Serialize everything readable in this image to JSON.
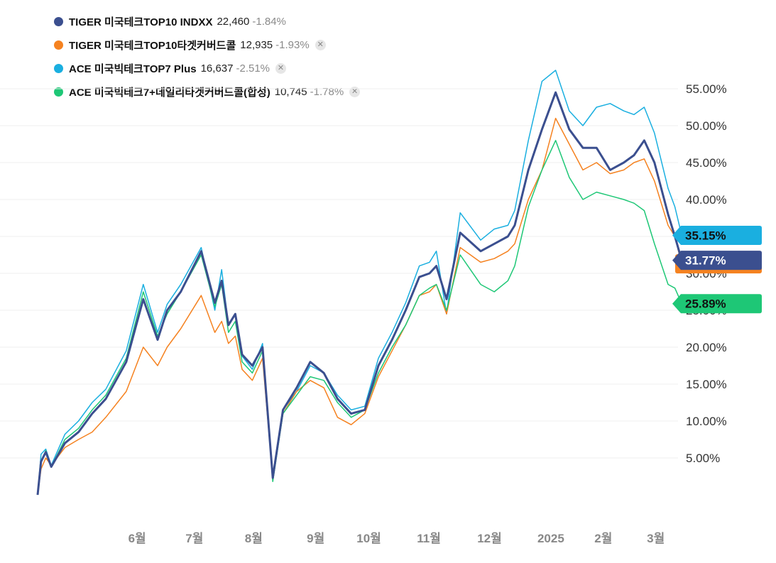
{
  "legend": [
    {
      "name": "TIGER 미국테크TOP10 INDXX",
      "price": "22,460",
      "change": "-1.84%",
      "color": "#3b4f8f",
      "closable": false
    },
    {
      "name": "TIGER 미국테크TOP10타겟커버드콜",
      "price": "12,935",
      "change": "-1.93%",
      "color": "#f58220",
      "closable": true
    },
    {
      "name": "ACE 미국빅테크TOP7 Plus",
      "price": "16,637",
      "change": "-2.51%",
      "color": "#1aafe0",
      "closable": true
    },
    {
      "name": "ACE 미국빅테크7+데일리타겟커버드콜(합성)",
      "price": "10,745",
      "change": "-1.78%",
      "color": "#1ec776",
      "closable": true
    }
  ],
  "close_glyph": "✕",
  "chart_data": {
    "type": "line",
    "y_ticks": [
      "5.00%",
      "10.00%",
      "15.00%",
      "20.00%",
      "25.00%",
      "30.00%",
      "35.00%",
      "40.00%",
      "45.00%",
      "50.00%",
      "55.00%"
    ],
    "y_tick_values": [
      5,
      10,
      15,
      20,
      25,
      30,
      35,
      40,
      45,
      50,
      55
    ],
    "ylim": [
      0,
      58
    ],
    "x_ticks": [
      {
        "label": "6월",
        "t": 0.146
      },
      {
        "label": "7월",
        "t": 0.23
      },
      {
        "label": "8월",
        "t": 0.317
      },
      {
        "label": "9월",
        "t": 0.408
      },
      {
        "label": "10월",
        "t": 0.486
      },
      {
        "label": "11월",
        "t": 0.574
      },
      {
        "label": "12월",
        "t": 0.663
      },
      {
        "label": "2025",
        "t": 0.753
      },
      {
        "label": "2월",
        "t": 0.83
      },
      {
        "label": "3월",
        "t": 0.907
      }
    ],
    "grid": true,
    "series": [
      {
        "name": "ACE 미국빅테크TOP7 Plus",
        "color": "#1aafe0",
        "width": 1.5,
        "last_value": "35.15%",
        "points": [
          [
            0,
            0
          ],
          [
            0.005,
            5.5
          ],
          [
            0.012,
            6.2
          ],
          [
            0.02,
            4
          ],
          [
            0.04,
            8.2
          ],
          [
            0.06,
            10
          ],
          [
            0.08,
            12.5
          ],
          [
            0.1,
            14.3
          ],
          [
            0.13,
            19.5
          ],
          [
            0.155,
            28.5
          ],
          [
            0.176,
            22
          ],
          [
            0.19,
            25.8
          ],
          [
            0.21,
            28.5
          ],
          [
            0.24,
            33.5
          ],
          [
            0.26,
            25
          ],
          [
            0.27,
            30.5
          ],
          [
            0.28,
            23
          ],
          [
            0.29,
            24.5
          ],
          [
            0.3,
            18.8
          ],
          [
            0.315,
            17
          ],
          [
            0.33,
            20.5
          ],
          [
            0.345,
            2.2
          ],
          [
            0.36,
            11.5
          ],
          [
            0.38,
            14
          ],
          [
            0.4,
            17.5
          ],
          [
            0.42,
            16.5
          ],
          [
            0.44,
            13.5
          ],
          [
            0.46,
            11.5
          ],
          [
            0.48,
            12
          ],
          [
            0.5,
            18.5
          ],
          [
            0.52,
            22
          ],
          [
            0.54,
            26
          ],
          [
            0.56,
            31
          ],
          [
            0.575,
            31.5
          ],
          [
            0.585,
            33
          ],
          [
            0.6,
            24.5
          ],
          [
            0.62,
            38.2
          ],
          [
            0.65,
            34.5
          ],
          [
            0.67,
            36
          ],
          [
            0.69,
            36.5
          ],
          [
            0.7,
            38.5
          ],
          [
            0.72,
            48
          ],
          [
            0.74,
            56
          ],
          [
            0.76,
            57.5
          ],
          [
            0.78,
            52
          ],
          [
            0.8,
            50
          ],
          [
            0.82,
            52.5
          ],
          [
            0.84,
            53
          ],
          [
            0.86,
            52
          ],
          [
            0.875,
            51.5
          ],
          [
            0.89,
            52.5
          ],
          [
            0.905,
            49
          ],
          [
            0.925,
            41.5
          ],
          [
            0.935,
            39
          ],
          [
            0.945,
            35.15
          ]
        ]
      },
      {
        "name": "TIGER 미국테크TOP10타겟커버드콜",
        "color": "#f58220",
        "width": 1.5,
        "last_value": "31.2%",
        "points": [
          [
            0,
            0
          ],
          [
            0.005,
            3.5
          ],
          [
            0.012,
            5
          ],
          [
            0.02,
            4
          ],
          [
            0.04,
            6.4
          ],
          [
            0.06,
            7.5
          ],
          [
            0.08,
            8.5
          ],
          [
            0.1,
            10.5
          ],
          [
            0.13,
            14
          ],
          [
            0.155,
            20
          ],
          [
            0.176,
            17.5
          ],
          [
            0.19,
            20
          ],
          [
            0.21,
            22.5
          ],
          [
            0.24,
            27
          ],
          [
            0.26,
            22
          ],
          [
            0.27,
            23.5
          ],
          [
            0.28,
            20.5
          ],
          [
            0.29,
            21.5
          ],
          [
            0.3,
            17
          ],
          [
            0.315,
            15.5
          ],
          [
            0.33,
            18.5
          ],
          [
            0.345,
            2.3
          ],
          [
            0.36,
            11
          ],
          [
            0.38,
            14
          ],
          [
            0.4,
            15.5
          ],
          [
            0.42,
            14.5
          ],
          [
            0.44,
            10.5
          ],
          [
            0.46,
            9.5
          ],
          [
            0.48,
            11
          ],
          [
            0.5,
            16
          ],
          [
            0.52,
            19.5
          ],
          [
            0.54,
            23
          ],
          [
            0.56,
            27
          ],
          [
            0.575,
            27.5
          ],
          [
            0.585,
            28.5
          ],
          [
            0.6,
            24.5
          ],
          [
            0.62,
            33.5
          ],
          [
            0.65,
            31.5
          ],
          [
            0.67,
            32
          ],
          [
            0.69,
            33
          ],
          [
            0.7,
            34
          ],
          [
            0.72,
            40
          ],
          [
            0.74,
            44
          ],
          [
            0.76,
            51
          ],
          [
            0.78,
            47.5
          ],
          [
            0.8,
            44
          ],
          [
            0.82,
            45
          ],
          [
            0.84,
            43.5
          ],
          [
            0.86,
            44
          ],
          [
            0.875,
            45
          ],
          [
            0.89,
            45.5
          ],
          [
            0.905,
            42.5
          ],
          [
            0.925,
            36.5
          ],
          [
            0.935,
            35
          ],
          [
            0.945,
            31.2
          ]
        ]
      },
      {
        "name": "ACE 미국빅테크7+데일리타겟커버드콜(합성)",
        "color": "#1ec776",
        "width": 1.5,
        "last_value": "25.89%",
        "points": [
          [
            0,
            0
          ],
          [
            0.005,
            4.5
          ],
          [
            0.012,
            6
          ],
          [
            0.02,
            3.8
          ],
          [
            0.04,
            7.5
          ],
          [
            0.06,
            9
          ],
          [
            0.08,
            11.5
          ],
          [
            0.1,
            13.5
          ],
          [
            0.13,
            18.5
          ],
          [
            0.155,
            27.5
          ],
          [
            0.176,
            21.5
          ],
          [
            0.19,
            24.5
          ],
          [
            0.21,
            27.5
          ],
          [
            0.24,
            32.5
          ],
          [
            0.26,
            25.5
          ],
          [
            0.27,
            28.5
          ],
          [
            0.28,
            22
          ],
          [
            0.29,
            23.5
          ],
          [
            0.3,
            18
          ],
          [
            0.315,
            16.5
          ],
          [
            0.33,
            19.5
          ],
          [
            0.345,
            1.8
          ],
          [
            0.36,
            11
          ],
          [
            0.38,
            13.5
          ],
          [
            0.4,
            16
          ],
          [
            0.42,
            15.5
          ],
          [
            0.44,
            12.5
          ],
          [
            0.46,
            10.5
          ],
          [
            0.48,
            11.5
          ],
          [
            0.5,
            16.5
          ],
          [
            0.52,
            20
          ],
          [
            0.54,
            23
          ],
          [
            0.56,
            27
          ],
          [
            0.575,
            28
          ],
          [
            0.585,
            28.5
          ],
          [
            0.6,
            25
          ],
          [
            0.62,
            32.5
          ],
          [
            0.65,
            28.5
          ],
          [
            0.67,
            27.5
          ],
          [
            0.69,
            29
          ],
          [
            0.7,
            31
          ],
          [
            0.72,
            39
          ],
          [
            0.74,
            44
          ],
          [
            0.76,
            48
          ],
          [
            0.78,
            43
          ],
          [
            0.8,
            40
          ],
          [
            0.82,
            41
          ],
          [
            0.84,
            40.5
          ],
          [
            0.86,
            40
          ],
          [
            0.875,
            39.5
          ],
          [
            0.89,
            38.5
          ],
          [
            0.905,
            34
          ],
          [
            0.925,
            28.5
          ],
          [
            0.935,
            28
          ],
          [
            0.945,
            25.89
          ]
        ]
      },
      {
        "name": "TIGER 미국테크TOP10 INDXX",
        "color": "#3b4f8f",
        "width": 3,
        "last_value": "31.77%",
        "points": [
          [
            0,
            0
          ],
          [
            0.005,
            4.5
          ],
          [
            0.012,
            5.8
          ],
          [
            0.02,
            3.8
          ],
          [
            0.04,
            7
          ],
          [
            0.06,
            8.5
          ],
          [
            0.08,
            11
          ],
          [
            0.1,
            13
          ],
          [
            0.13,
            18
          ],
          [
            0.155,
            26.5
          ],
          [
            0.176,
            21
          ],
          [
            0.19,
            25
          ],
          [
            0.21,
            27.5
          ],
          [
            0.24,
            33
          ],
          [
            0.26,
            26
          ],
          [
            0.27,
            29
          ],
          [
            0.28,
            23
          ],
          [
            0.29,
            24.5
          ],
          [
            0.3,
            19
          ],
          [
            0.315,
            17.5
          ],
          [
            0.33,
            20
          ],
          [
            0.345,
            2.3
          ],
          [
            0.36,
            11.5
          ],
          [
            0.38,
            14.5
          ],
          [
            0.4,
            18
          ],
          [
            0.42,
            16.5
          ],
          [
            0.44,
            13
          ],
          [
            0.46,
            11
          ],
          [
            0.48,
            11.5
          ],
          [
            0.5,
            17.5
          ],
          [
            0.52,
            21
          ],
          [
            0.54,
            25
          ],
          [
            0.56,
            29.5
          ],
          [
            0.575,
            30
          ],
          [
            0.585,
            31
          ],
          [
            0.6,
            26.5
          ],
          [
            0.62,
            35.5
          ],
          [
            0.65,
            33
          ],
          [
            0.67,
            34
          ],
          [
            0.69,
            35
          ],
          [
            0.7,
            36.5
          ],
          [
            0.72,
            44
          ],
          [
            0.74,
            49.5
          ],
          [
            0.76,
            54.5
          ],
          [
            0.78,
            49.5
          ],
          [
            0.8,
            47
          ],
          [
            0.82,
            47
          ],
          [
            0.84,
            44
          ],
          [
            0.86,
            45
          ],
          [
            0.875,
            46
          ],
          [
            0.89,
            48
          ],
          [
            0.905,
            45
          ],
          [
            0.925,
            38
          ],
          [
            0.935,
            35
          ],
          [
            0.945,
            31.77
          ]
        ]
      }
    ],
    "end_labels": [
      {
        "text": "35.15%",
        "value": 35.15,
        "color": "#1aafe0",
        "text_color": "#111111"
      },
      {
        "text": "31.77%",
        "value": 31.77,
        "color": "#3b4f8f",
        "text_color": "#ffffff",
        "under_color": "#f58220"
      },
      {
        "text": "25.89%",
        "value": 25.89,
        "color": "#1ec776",
        "text_color": "#111111"
      }
    ]
  }
}
